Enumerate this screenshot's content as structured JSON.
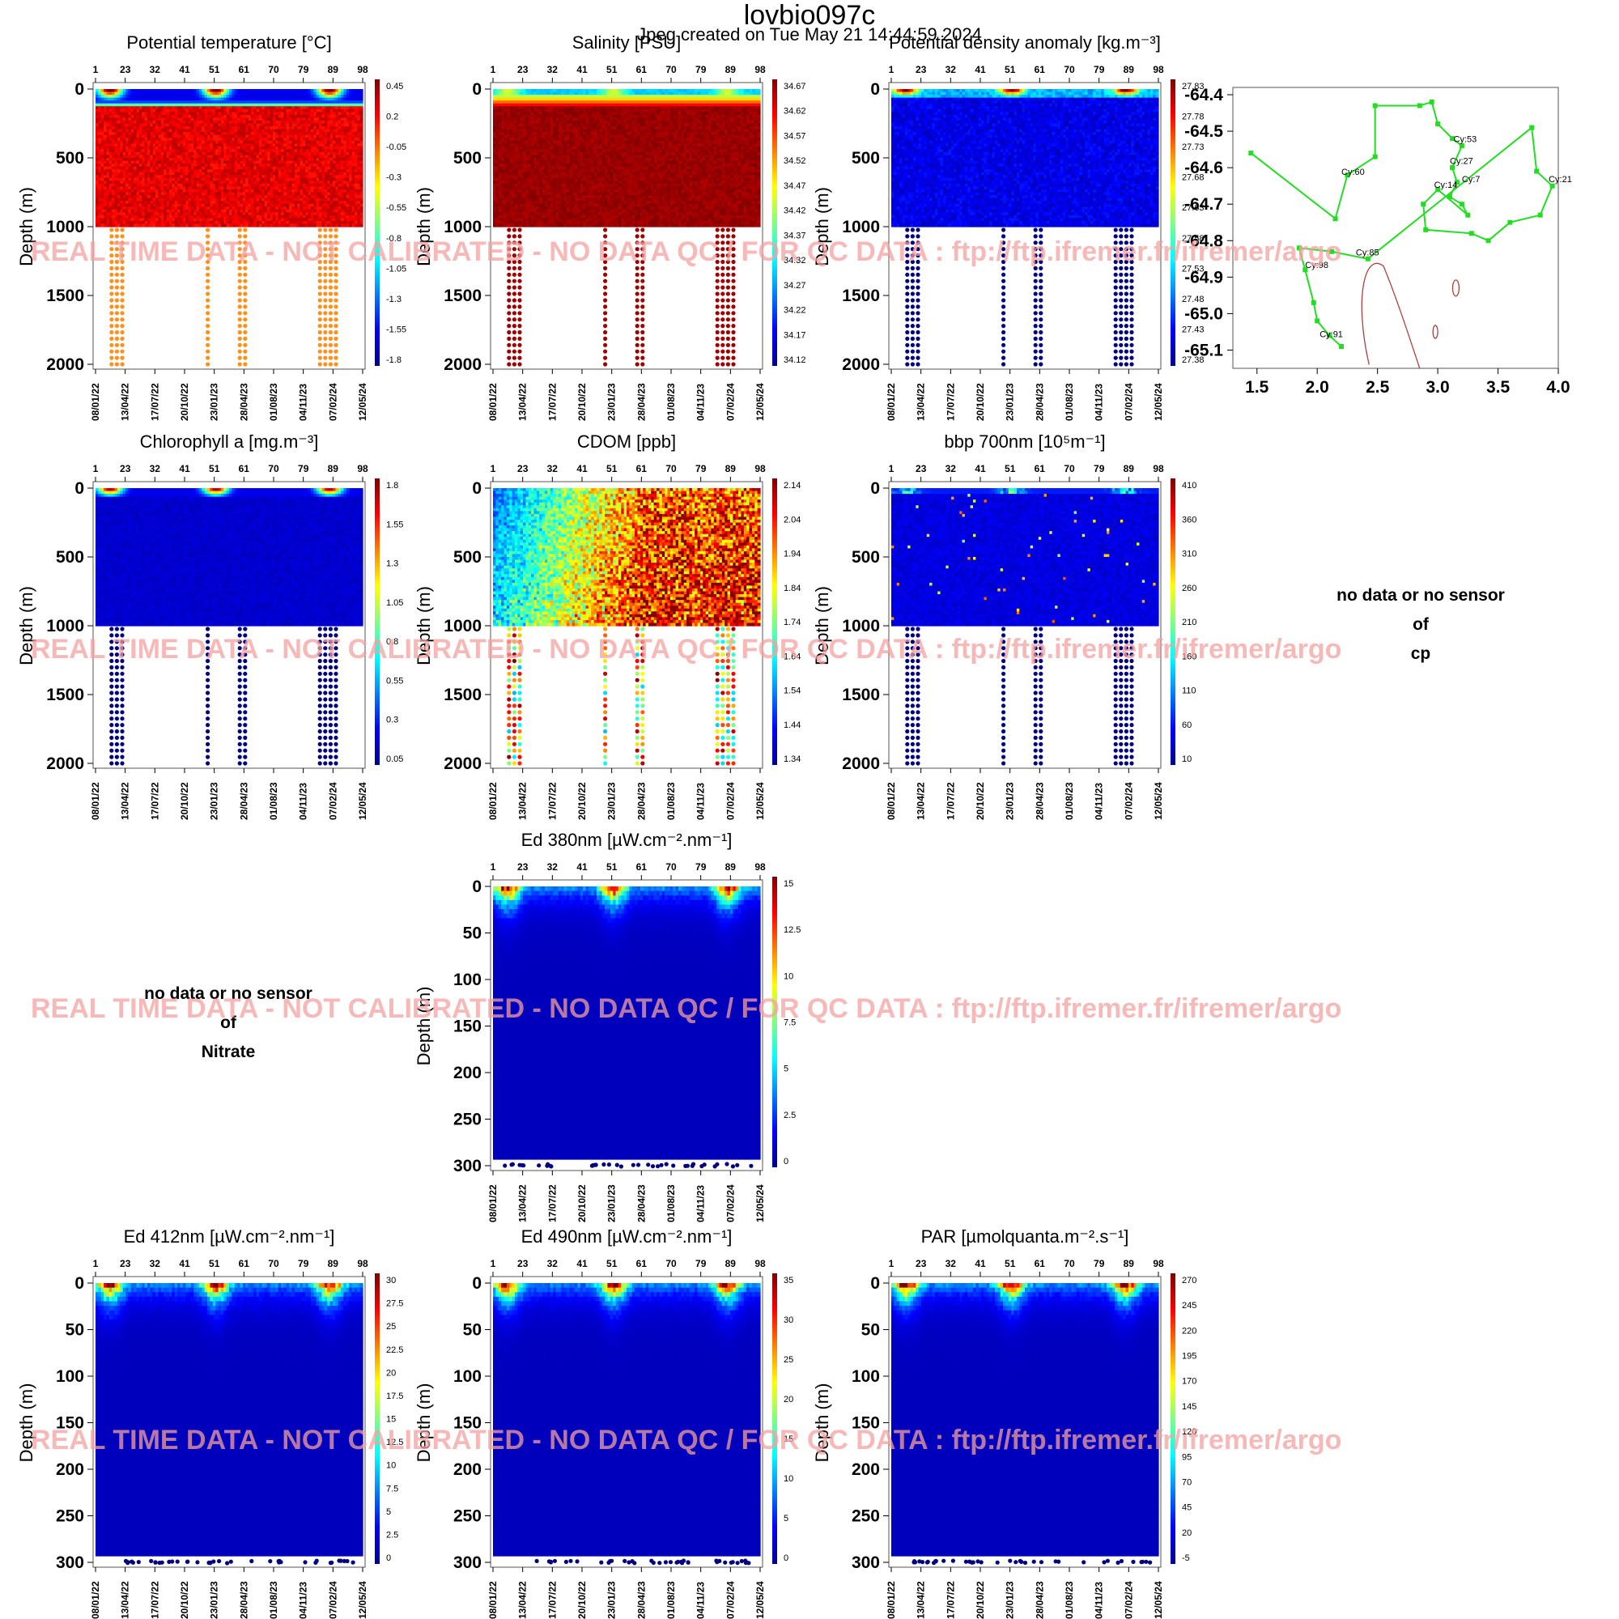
{
  "header": {
    "title": "lovbio097c",
    "subtitle": "Jpeg created on  Tue May 21 14:44:59 2024"
  },
  "watermark": "REAL TIME DATA - NOT CALIBRATED - NO DATA QC  /  FOR QC DATA : ftp://ftp.ifremer.fr/ifremer/argo",
  "no_data": [
    {
      "lines": [
        "no data or no sensor",
        "of",
        "cp"
      ]
    },
    {
      "lines": [
        "no data or no sensor",
        "of",
        "Nitrate"
      ]
    }
  ],
  "colors": {
    "colormap": [
      "#00008f",
      "#0000ff",
      "#0080ff",
      "#00ffff",
      "#80ff80",
      "#ffff00",
      "#ff8000",
      "#ff0000",
      "#800000"
    ],
    "trajectory": "#22dd22",
    "coastline": "#b04040",
    "watermark": "#f4a0a0"
  },
  "chart_data": [
    {
      "type": "heatmap",
      "title": "Potential temperature [°C]",
      "ylabel": "Depth (m)",
      "ylim": [
        2000,
        0
      ],
      "yticks": [
        0,
        500,
        1000,
        1500,
        2000
      ],
      "cycle_ticks": [
        "1",
        "23",
        "32",
        "41",
        "51",
        "61",
        "70",
        "79",
        "89",
        "98"
      ],
      "date_ticks": [
        "08/01/22",
        "13/04/22",
        "17/07/22",
        "20/10/22",
        "23/01/23",
        "28/04/23",
        "01/08/23",
        "04/11/23",
        "07/02/24",
        "12/05/24"
      ],
      "colorbar": [
        "0.45",
        "0.2",
        "-0.05",
        "-0.3",
        "-0.55",
        "-0.8",
        "-1.05",
        "-1.3",
        "-1.55",
        "-1.8"
      ]
    },
    {
      "type": "heatmap",
      "title": "Salinity [PSU]",
      "ylabel": "Depth (m)",
      "ylim": [
        2000,
        0
      ],
      "yticks": [
        0,
        500,
        1000,
        1500,
        2000
      ],
      "cycle_ticks": [
        "1",
        "23",
        "32",
        "41",
        "51",
        "61",
        "70",
        "79",
        "89",
        "98"
      ],
      "date_ticks": [
        "08/01/22",
        "13/04/22",
        "17/07/22",
        "20/10/22",
        "23/01/23",
        "28/04/23",
        "01/08/23",
        "04/11/23",
        "07/02/24",
        "12/05/24"
      ],
      "colorbar": [
        "34.67",
        "34.62",
        "34.57",
        "34.52",
        "34.47",
        "34.42",
        "34.37",
        "34.32",
        "34.27",
        "34.22",
        "34.17",
        "34.12"
      ]
    },
    {
      "type": "heatmap",
      "title": "Potential density anomaly [kg.m⁻³]",
      "ylabel": "Depth (m)",
      "ylim": [
        2000,
        0
      ],
      "yticks": [
        0,
        500,
        1000,
        1500,
        2000
      ],
      "cycle_ticks": [
        "1",
        "23",
        "32",
        "41",
        "51",
        "61",
        "70",
        "79",
        "89",
        "98"
      ],
      "date_ticks": [
        "08/01/22",
        "13/04/22",
        "17/07/22",
        "20/10/22",
        "23/01/23",
        "28/04/23",
        "01/08/23",
        "04/11/23",
        "07/02/24",
        "12/05/24"
      ],
      "colorbar": [
        "27.83",
        "27.78",
        "27.73",
        "27.68",
        "27.63",
        "27.58",
        "27.53",
        "27.48",
        "27.43",
        "27.38"
      ]
    },
    {
      "type": "scatter",
      "subtype": "trajectory",
      "xlim": [
        1.3,
        4.0
      ],
      "ylim": [
        -65.15,
        -64.38
      ],
      "xticks": [
        "1.5",
        "2.0",
        "2.5",
        "3.0",
        "3.5",
        "4.0"
      ],
      "yticks": [
        "-64.4",
        "-64.5",
        "-64.6",
        "-64.7",
        "-64.8",
        "-64.9",
        "-65.0",
        "-65.1"
      ],
      "points": [
        {
          "x": 1.45,
          "y": -64.56
        },
        {
          "x": 2.15,
          "y": -64.74
        },
        {
          "x": 2.25,
          "y": -64.62
        },
        {
          "x": 2.48,
          "y": -64.57
        },
        {
          "x": 2.48,
          "y": -64.43
        },
        {
          "x": 2.85,
          "y": -64.43
        },
        {
          "x": 2.95,
          "y": -64.42
        },
        {
          "x": 3.0,
          "y": -64.48
        },
        {
          "x": 3.12,
          "y": -64.52
        },
        {
          "x": 3.2,
          "y": -64.54
        },
        {
          "x": 3.12,
          "y": -64.6
        },
        {
          "x": 3.16,
          "y": -64.64
        },
        {
          "x": 3.1,
          "y": -64.68
        },
        {
          "x": 3.2,
          "y": -64.7
        },
        {
          "x": 3.25,
          "y": -64.73
        },
        {
          "x": 3.0,
          "y": -64.66
        },
        {
          "x": 2.88,
          "y": -64.7
        },
        {
          "x": 2.9,
          "y": -64.77
        },
        {
          "x": 3.28,
          "y": -64.78
        },
        {
          "x": 3.42,
          "y": -64.8
        },
        {
          "x": 3.6,
          "y": -64.75
        },
        {
          "x": 3.85,
          "y": -64.73
        },
        {
          "x": 3.95,
          "y": -64.65
        },
        {
          "x": 3.82,
          "y": -64.61
        },
        {
          "x": 3.78,
          "y": -64.49
        },
        {
          "x": 2.42,
          "y": -64.85
        },
        {
          "x": 2.12,
          "y": -64.83
        },
        {
          "x": 1.85,
          "y": -64.82
        },
        {
          "x": 1.9,
          "y": -64.88
        },
        {
          "x": 1.97,
          "y": -64.97
        },
        {
          "x": 2.0,
          "y": -65.02
        },
        {
          "x": 2.1,
          "y": -65.06
        },
        {
          "x": 2.2,
          "y": -65.09
        }
      ],
      "labels": [
        {
          "text": "Cy:53",
          "x": 3.13,
          "y": -64.53
        },
        {
          "text": "Cy:27",
          "x": 3.1,
          "y": -64.59
        },
        {
          "text": "Cy:60",
          "x": 2.2,
          "y": -64.62
        },
        {
          "text": "Cy:7",
          "x": 3.2,
          "y": -64.64
        },
        {
          "text": "Cy:14",
          "x": 2.97,
          "y": -64.655
        },
        {
          "text": "Cy:21",
          "x": 3.92,
          "y": -64.64
        },
        {
          "text": "Cy:85",
          "x": 2.32,
          "y": -64.84
        },
        {
          "text": "Cy:98",
          "x": 1.9,
          "y": -64.875
        },
        {
          "text": "Cy:91",
          "x": 2.02,
          "y": -65.065
        }
      ]
    },
    {
      "type": "heatmap",
      "title": "Chlorophyll a [mg.m⁻³]",
      "ylabel": "Depth (m)",
      "ylim": [
        2000,
        0
      ],
      "yticks": [
        0,
        500,
        1000,
        1500,
        2000
      ],
      "cycle_ticks": [
        "1",
        "23",
        "32",
        "41",
        "51",
        "61",
        "70",
        "79",
        "89",
        "98"
      ],
      "date_ticks": [
        "08/01/22",
        "13/04/22",
        "17/07/22",
        "20/10/22",
        "23/01/23",
        "28/04/23",
        "01/08/23",
        "04/11/23",
        "07/02/24",
        "12/05/24"
      ],
      "colorbar": [
        "1.8",
        "1.55",
        "1.3",
        "1.05",
        "0.8",
        "0.55",
        "0.3",
        "0.05"
      ]
    },
    {
      "type": "heatmap",
      "title": "CDOM  [ppb]",
      "ylabel": "Depth (m)",
      "ylim": [
        2000,
        0
      ],
      "yticks": [
        0,
        500,
        1000,
        1500,
        2000
      ],
      "cycle_ticks": [
        "1",
        "23",
        "32",
        "41",
        "51",
        "61",
        "70",
        "79",
        "89",
        "98"
      ],
      "date_ticks": [
        "08/01/22",
        "13/04/22",
        "17/07/22",
        "20/10/22",
        "23/01/23",
        "28/04/23",
        "01/08/23",
        "04/11/23",
        "07/02/24",
        "12/05/24"
      ],
      "colorbar": [
        "2.14",
        "2.04",
        "1.94",
        "1.84",
        "1.74",
        "1.64",
        "1.54",
        "1.44",
        "1.34"
      ]
    },
    {
      "type": "heatmap",
      "title": "bbp 700nm [10⁵m⁻¹]",
      "ylabel": "Depth (m)",
      "ylim": [
        2000,
        0
      ],
      "yticks": [
        0,
        500,
        1000,
        1500,
        2000
      ],
      "cycle_ticks": [
        "1",
        "23",
        "32",
        "41",
        "51",
        "61",
        "70",
        "79",
        "89",
        "98"
      ],
      "date_ticks": [
        "08/01/22",
        "13/04/22",
        "17/07/22",
        "20/10/22",
        "23/01/23",
        "28/04/23",
        "01/08/23",
        "04/11/23",
        "07/02/24",
        "12/05/24"
      ],
      "colorbar": [
        "410",
        "360",
        "310",
        "260",
        "210",
        "160",
        "110",
        "60",
        "10"
      ]
    },
    {
      "type": "heatmap",
      "title": "Ed 380nm [µW.cm⁻².nm⁻¹]",
      "ylabel": "Depth (m)",
      "ylim": [
        300,
        0
      ],
      "yticks": [
        0,
        50,
        100,
        150,
        200,
        250,
        300
      ],
      "cycle_ticks": [
        "1",
        "23",
        "32",
        "41",
        "51",
        "61",
        "70",
        "79",
        "89",
        "98"
      ],
      "date_ticks": [
        "08/01/22",
        "13/04/22",
        "17/07/22",
        "20/10/22",
        "23/01/23",
        "28/04/23",
        "01/08/23",
        "04/11/23",
        "07/02/24",
        "12/05/24"
      ],
      "colorbar": [
        "15",
        "12.5",
        "10",
        "7.5",
        "5",
        "2.5",
        "0"
      ]
    },
    {
      "type": "heatmap",
      "title": "Ed 412nm [µW.cm⁻².nm⁻¹]",
      "ylabel": "Depth (m)",
      "ylim": [
        300,
        0
      ],
      "yticks": [
        0,
        50,
        100,
        150,
        200,
        250,
        300
      ],
      "cycle_ticks": [
        "1",
        "23",
        "32",
        "41",
        "51",
        "61",
        "70",
        "79",
        "89",
        "98"
      ],
      "date_ticks": [
        "08/01/22",
        "13/04/22",
        "17/07/22",
        "20/10/22",
        "23/01/23",
        "28/04/23",
        "01/08/23",
        "04/11/23",
        "07/02/24",
        "12/05/24"
      ],
      "colorbar": [
        "30",
        "27.5",
        "25",
        "22.5",
        "20",
        "17.5",
        "15",
        "12.5",
        "10",
        "7.5",
        "5",
        "2.5",
        "0"
      ]
    },
    {
      "type": "heatmap",
      "title": "Ed 490nm [µW.cm⁻².nm⁻¹]",
      "ylabel": "Depth (m)",
      "ylim": [
        300,
        0
      ],
      "yticks": [
        0,
        50,
        100,
        150,
        200,
        250,
        300
      ],
      "cycle_ticks": [
        "1",
        "23",
        "32",
        "41",
        "51",
        "61",
        "70",
        "79",
        "89",
        "98"
      ],
      "date_ticks": [
        "08/01/22",
        "13/04/22",
        "17/07/22",
        "20/10/22",
        "23/01/23",
        "28/04/23",
        "01/08/23",
        "04/11/23",
        "07/02/24",
        "12/05/24"
      ],
      "colorbar": [
        "35",
        "30",
        "25",
        "20",
        "15",
        "10",
        "5",
        "0"
      ]
    },
    {
      "type": "heatmap",
      "title": "PAR [µmolquanta.m⁻².s⁻¹]",
      "ylabel": "Depth (m)",
      "ylim": [
        300,
        0
      ],
      "yticks": [
        0,
        50,
        100,
        150,
        200,
        250,
        300
      ],
      "cycle_ticks": [
        "1",
        "23",
        "32",
        "41",
        "51",
        "61",
        "70",
        "79",
        "89",
        "98"
      ],
      "date_ticks": [
        "08/01/22",
        "13/04/22",
        "17/07/22",
        "20/10/22",
        "23/01/23",
        "28/04/23",
        "01/08/23",
        "04/11/23",
        "07/02/24",
        "12/05/24"
      ],
      "colorbar": [
        "270",
        "245",
        "220",
        "195",
        "170",
        "145",
        "120",
        "95",
        "70",
        "45",
        "20",
        "-5"
      ]
    }
  ]
}
